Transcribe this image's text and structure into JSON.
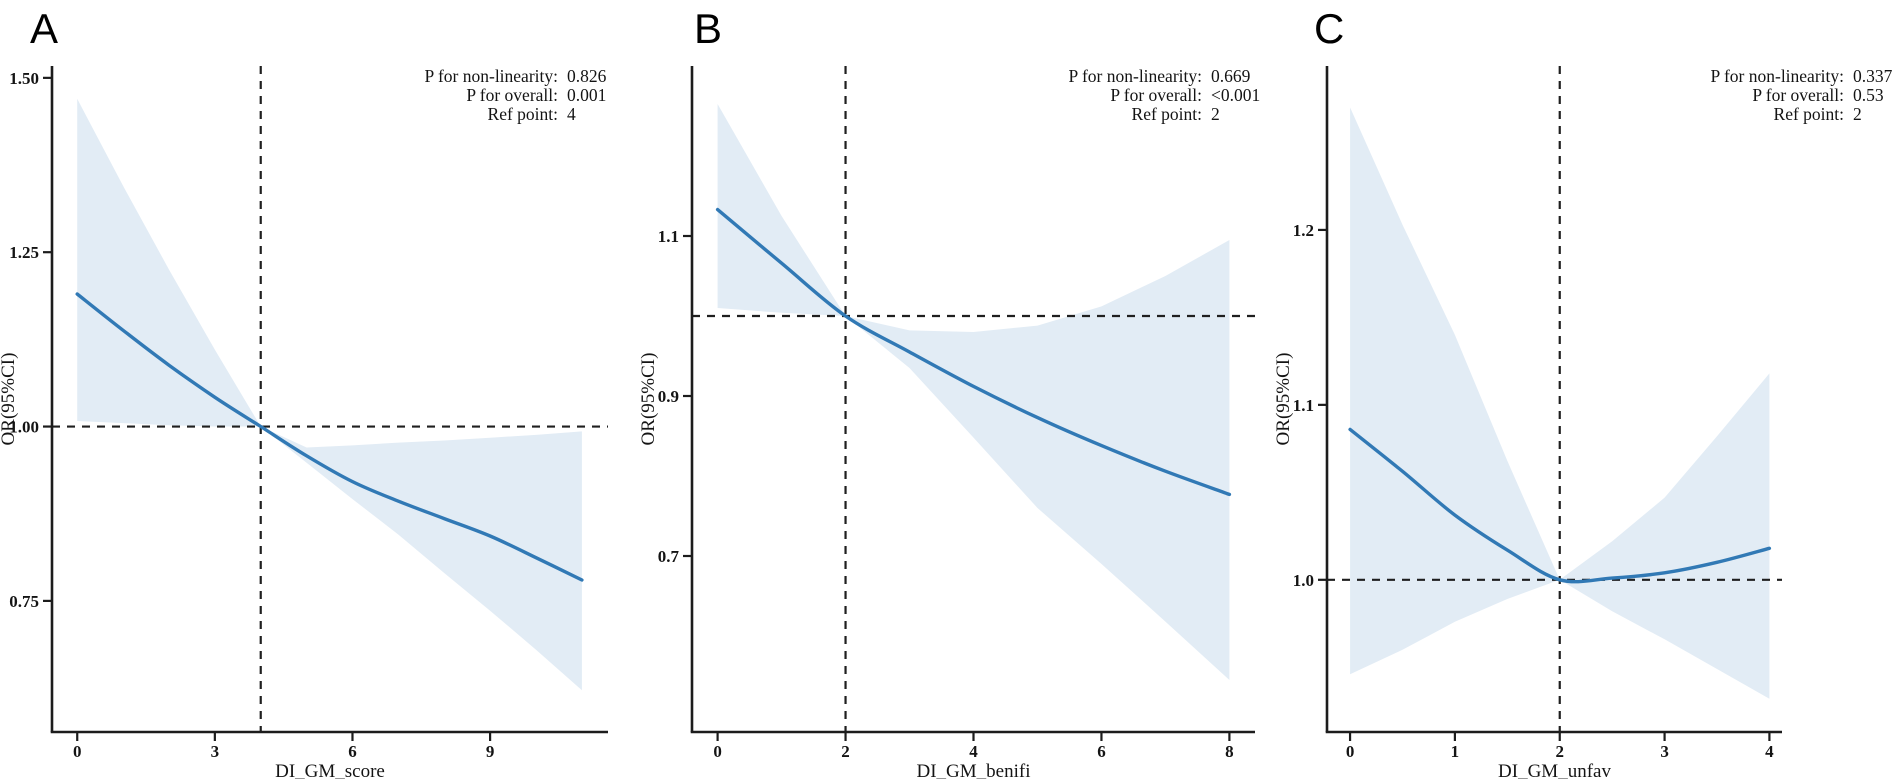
{
  "figure": {
    "background": "#ffffff",
    "line_color": "#3179b5",
    "band_color": "#e2ecf5",
    "axis_color": "#1c1c1c",
    "ref_line_color": "#1f1f1f"
  },
  "chart_data": [
    {
      "type": "line",
      "panel_label": "A",
      "xlabel": "DI_GM_score",
      "ylabel": "OR(95%CI)",
      "annotations": [
        {
          "label": "P for non-linearity:",
          "value": "0.826"
        },
        {
          "label": "P for overall:",
          "value": "0.001"
        },
        {
          "label": "Ref point:",
          "value": "4"
        }
      ],
      "ref_point": 4,
      "ref_or": 1.0,
      "xlim": [
        -0.55,
        11.57
      ],
      "ylim": [
        0.562,
        1.517
      ],
      "x_ticks": [
        0,
        3,
        6,
        9
      ],
      "x_tick_labels": [
        "0",
        "3",
        "6",
        "9"
      ],
      "y_ticks": [
        0.75,
        1.0,
        1.25,
        1.5
      ],
      "y_tick_labels": [
        "0.75",
        "1.00",
        "1.25",
        "1.50"
      ],
      "x": [
        0,
        1,
        2,
        3,
        4,
        5,
        6,
        7,
        8,
        9,
        10,
        11
      ],
      "or": [
        1.19,
        1.138,
        1.088,
        1.042,
        1.0,
        0.958,
        0.921,
        0.893,
        0.868,
        0.843,
        0.812,
        0.78
      ],
      "ci_upper": [
        1.47,
        1.345,
        1.225,
        1.11,
        1.0,
        0.97,
        0.973,
        0.977,
        0.98,
        0.984,
        0.988,
        0.993
      ],
      "ci_lower": [
        1.008,
        1.005,
        1.002,
        1.0,
        1.0,
        0.948,
        0.896,
        0.845,
        0.79,
        0.736,
        0.68,
        0.622
      ]
    },
    {
      "type": "line",
      "panel_label": "B",
      "xlabel": "DI_GM_benifi",
      "ylabel": "OR(95%CI)",
      "annotations": [
        {
          "label": "P for non-linearity:",
          "value": "0.669"
        },
        {
          "label": "P for overall:",
          "value": "<0.001"
        },
        {
          "label": "Ref point:",
          "value": "2"
        }
      ],
      "ref_point": 2,
      "ref_or": 1.0,
      "xlim": [
        -0.4,
        8.4
      ],
      "ylim": [
        0.48,
        1.3125
      ],
      "x_ticks": [
        0,
        2,
        4,
        6,
        8
      ],
      "x_tick_labels": [
        "0",
        "2",
        "4",
        "6",
        "8"
      ],
      "y_ticks": [
        0.7,
        0.9,
        1.1
      ],
      "y_tick_labels": [
        "0.7",
        "0.9",
        "1.1"
      ],
      "x": [
        0,
        1,
        2,
        3,
        4,
        5,
        6,
        7,
        8
      ],
      "or": [
        1.133,
        1.066,
        1.0,
        0.955,
        0.912,
        0.873,
        0.838,
        0.806,
        0.777
      ],
      "ci_upper": [
        1.265,
        1.125,
        1.0,
        0.982,
        0.98,
        0.988,
        1.012,
        1.05,
        1.095
      ],
      "ci_lower": [
        1.01,
        1.004,
        1.0,
        0.935,
        0.848,
        0.76,
        0.69,
        0.618,
        0.545
      ]
    },
    {
      "type": "line",
      "panel_label": "C",
      "xlabel": "DI_GM_unfav",
      "ylabel": "OR(95%CI)",
      "annotations": [
        {
          "label": "P for non-linearity:",
          "value": "0.337"
        },
        {
          "label": "P for overall:",
          "value": "0.53"
        },
        {
          "label": "Ref point:",
          "value": "2"
        }
      ],
      "ref_point": 2,
      "ref_or": 1.0,
      "xlim": [
        -0.22,
        4.12
      ],
      "ylim": [
        0.913,
        1.2937
      ],
      "x_ticks": [
        0,
        1,
        2,
        3,
        4
      ],
      "x_tick_labels": [
        "0",
        "1",
        "2",
        "3",
        "4"
      ],
      "y_ticks": [
        1.0,
        1.1,
        1.2
      ],
      "y_tick_labels": [
        "1.0",
        "1.1",
        "1.2"
      ],
      "x": [
        0,
        0.5,
        1,
        1.5,
        2,
        2.5,
        3,
        3.5,
        4
      ],
      "or": [
        1.086,
        1.062,
        1.037,
        1.017,
        1.0,
        1.001,
        1.004,
        1.01,
        1.018
      ],
      "ci_upper": [
        1.27,
        1.203,
        1.14,
        1.068,
        1.0,
        1.022,
        1.047,
        1.082,
        1.118
      ],
      "ci_lower": [
        0.946,
        0.96,
        0.976,
        0.989,
        1.0,
        0.982,
        0.966,
        0.949,
        0.932
      ]
    }
  ]
}
